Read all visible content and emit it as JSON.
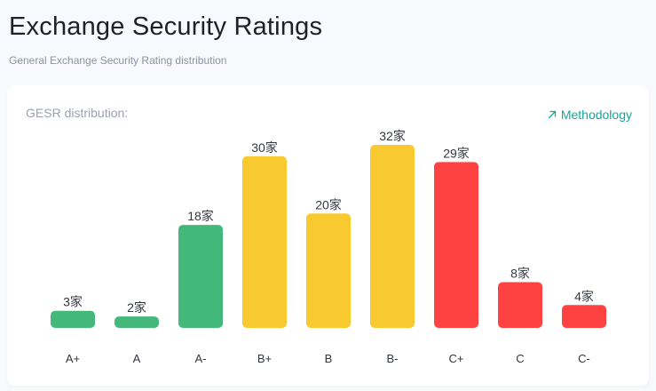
{
  "header": {
    "title": "Exchange Security Ratings",
    "subtitle": "General Exchange Security Rating distribution"
  },
  "card": {
    "label": "GESR distribution:",
    "methodology_link": "Methodology",
    "link_icon": "arrow-up-right-icon"
  },
  "colors": {
    "green": "#43b879",
    "yellow": "#f9ca30",
    "red": "#fe4242",
    "link": "#16a59a"
  },
  "chart_data": {
    "type": "bar",
    "categories": [
      "A+",
      "A",
      "A-",
      "B+",
      "B",
      "B-",
      "C+",
      "C",
      "C-"
    ],
    "values": [
      3,
      2,
      18,
      30,
      20,
      32,
      29,
      8,
      4
    ],
    "data_labels": [
      "3家",
      "2家",
      "18家",
      "30家",
      "20家",
      "32家",
      "29家",
      "8家",
      "4家"
    ],
    "bar_colors": [
      "#43b879",
      "#43b879",
      "#43b879",
      "#f9ca30",
      "#f9ca30",
      "#f9ca30",
      "#fe4242",
      "#fe4242",
      "#fe4242"
    ],
    "title": "",
    "xlabel": "",
    "ylabel": "",
    "ylim": [
      0,
      32
    ],
    "grid": false,
    "legend": "none"
  }
}
